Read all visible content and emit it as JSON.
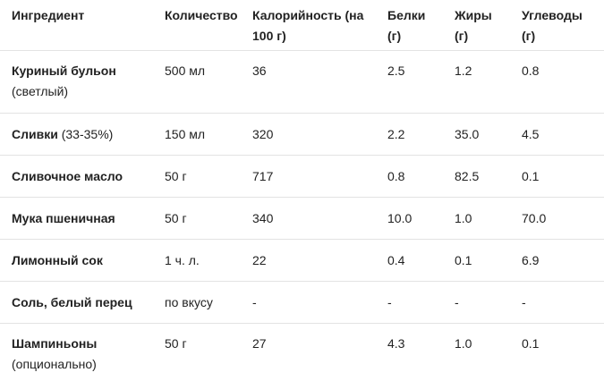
{
  "table": {
    "headers": {
      "ingredient": "Ингредиент",
      "quantity": "Количество",
      "calories_line1": "Калорийность (на",
      "calories_line2": "100 г)",
      "protein_line1": "Белки",
      "protein_line2": "(г)",
      "fat_line1": "Жиры",
      "fat_line2": "(г)",
      "carbs_line1": "Углеводы",
      "carbs_line2": "(г)"
    },
    "rows": [
      {
        "name": "Куриный бульон",
        "note": "(светлый)",
        "quantity": "500 мл",
        "calories": "36",
        "protein": "2.5",
        "fat": "1.2",
        "carbs": "0.8"
      },
      {
        "name": "Сливки",
        "note": "(33-35%)",
        "quantity": "150 мл",
        "calories": "320",
        "protein": "2.2",
        "fat": "35.0",
        "carbs": "4.5"
      },
      {
        "name": "Сливочное масло",
        "note": "",
        "quantity": "50 г",
        "calories": "717",
        "protein": "0.8",
        "fat": "82.5",
        "carbs": "0.1"
      },
      {
        "name": "Мука пшеничная",
        "note": "",
        "quantity": "50 г",
        "calories": "340",
        "protein": "10.0",
        "fat": "1.0",
        "carbs": "70.0"
      },
      {
        "name": "Лимонный сок",
        "note": "",
        "quantity": "1 ч. л.",
        "calories": "22",
        "protein": "0.4",
        "fat": "0.1",
        "carbs": "6.9"
      },
      {
        "name": "Соль, белый перец",
        "note": "",
        "quantity": "по вкусу",
        "calories": "-",
        "protein": "-",
        "fat": "-",
        "carbs": "-"
      },
      {
        "name": "Шампиньоны",
        "note": "(опционально)",
        "quantity": "50 г",
        "calories": "27",
        "protein": "4.3",
        "fat": "1.0",
        "carbs": "0.1"
      }
    ]
  }
}
